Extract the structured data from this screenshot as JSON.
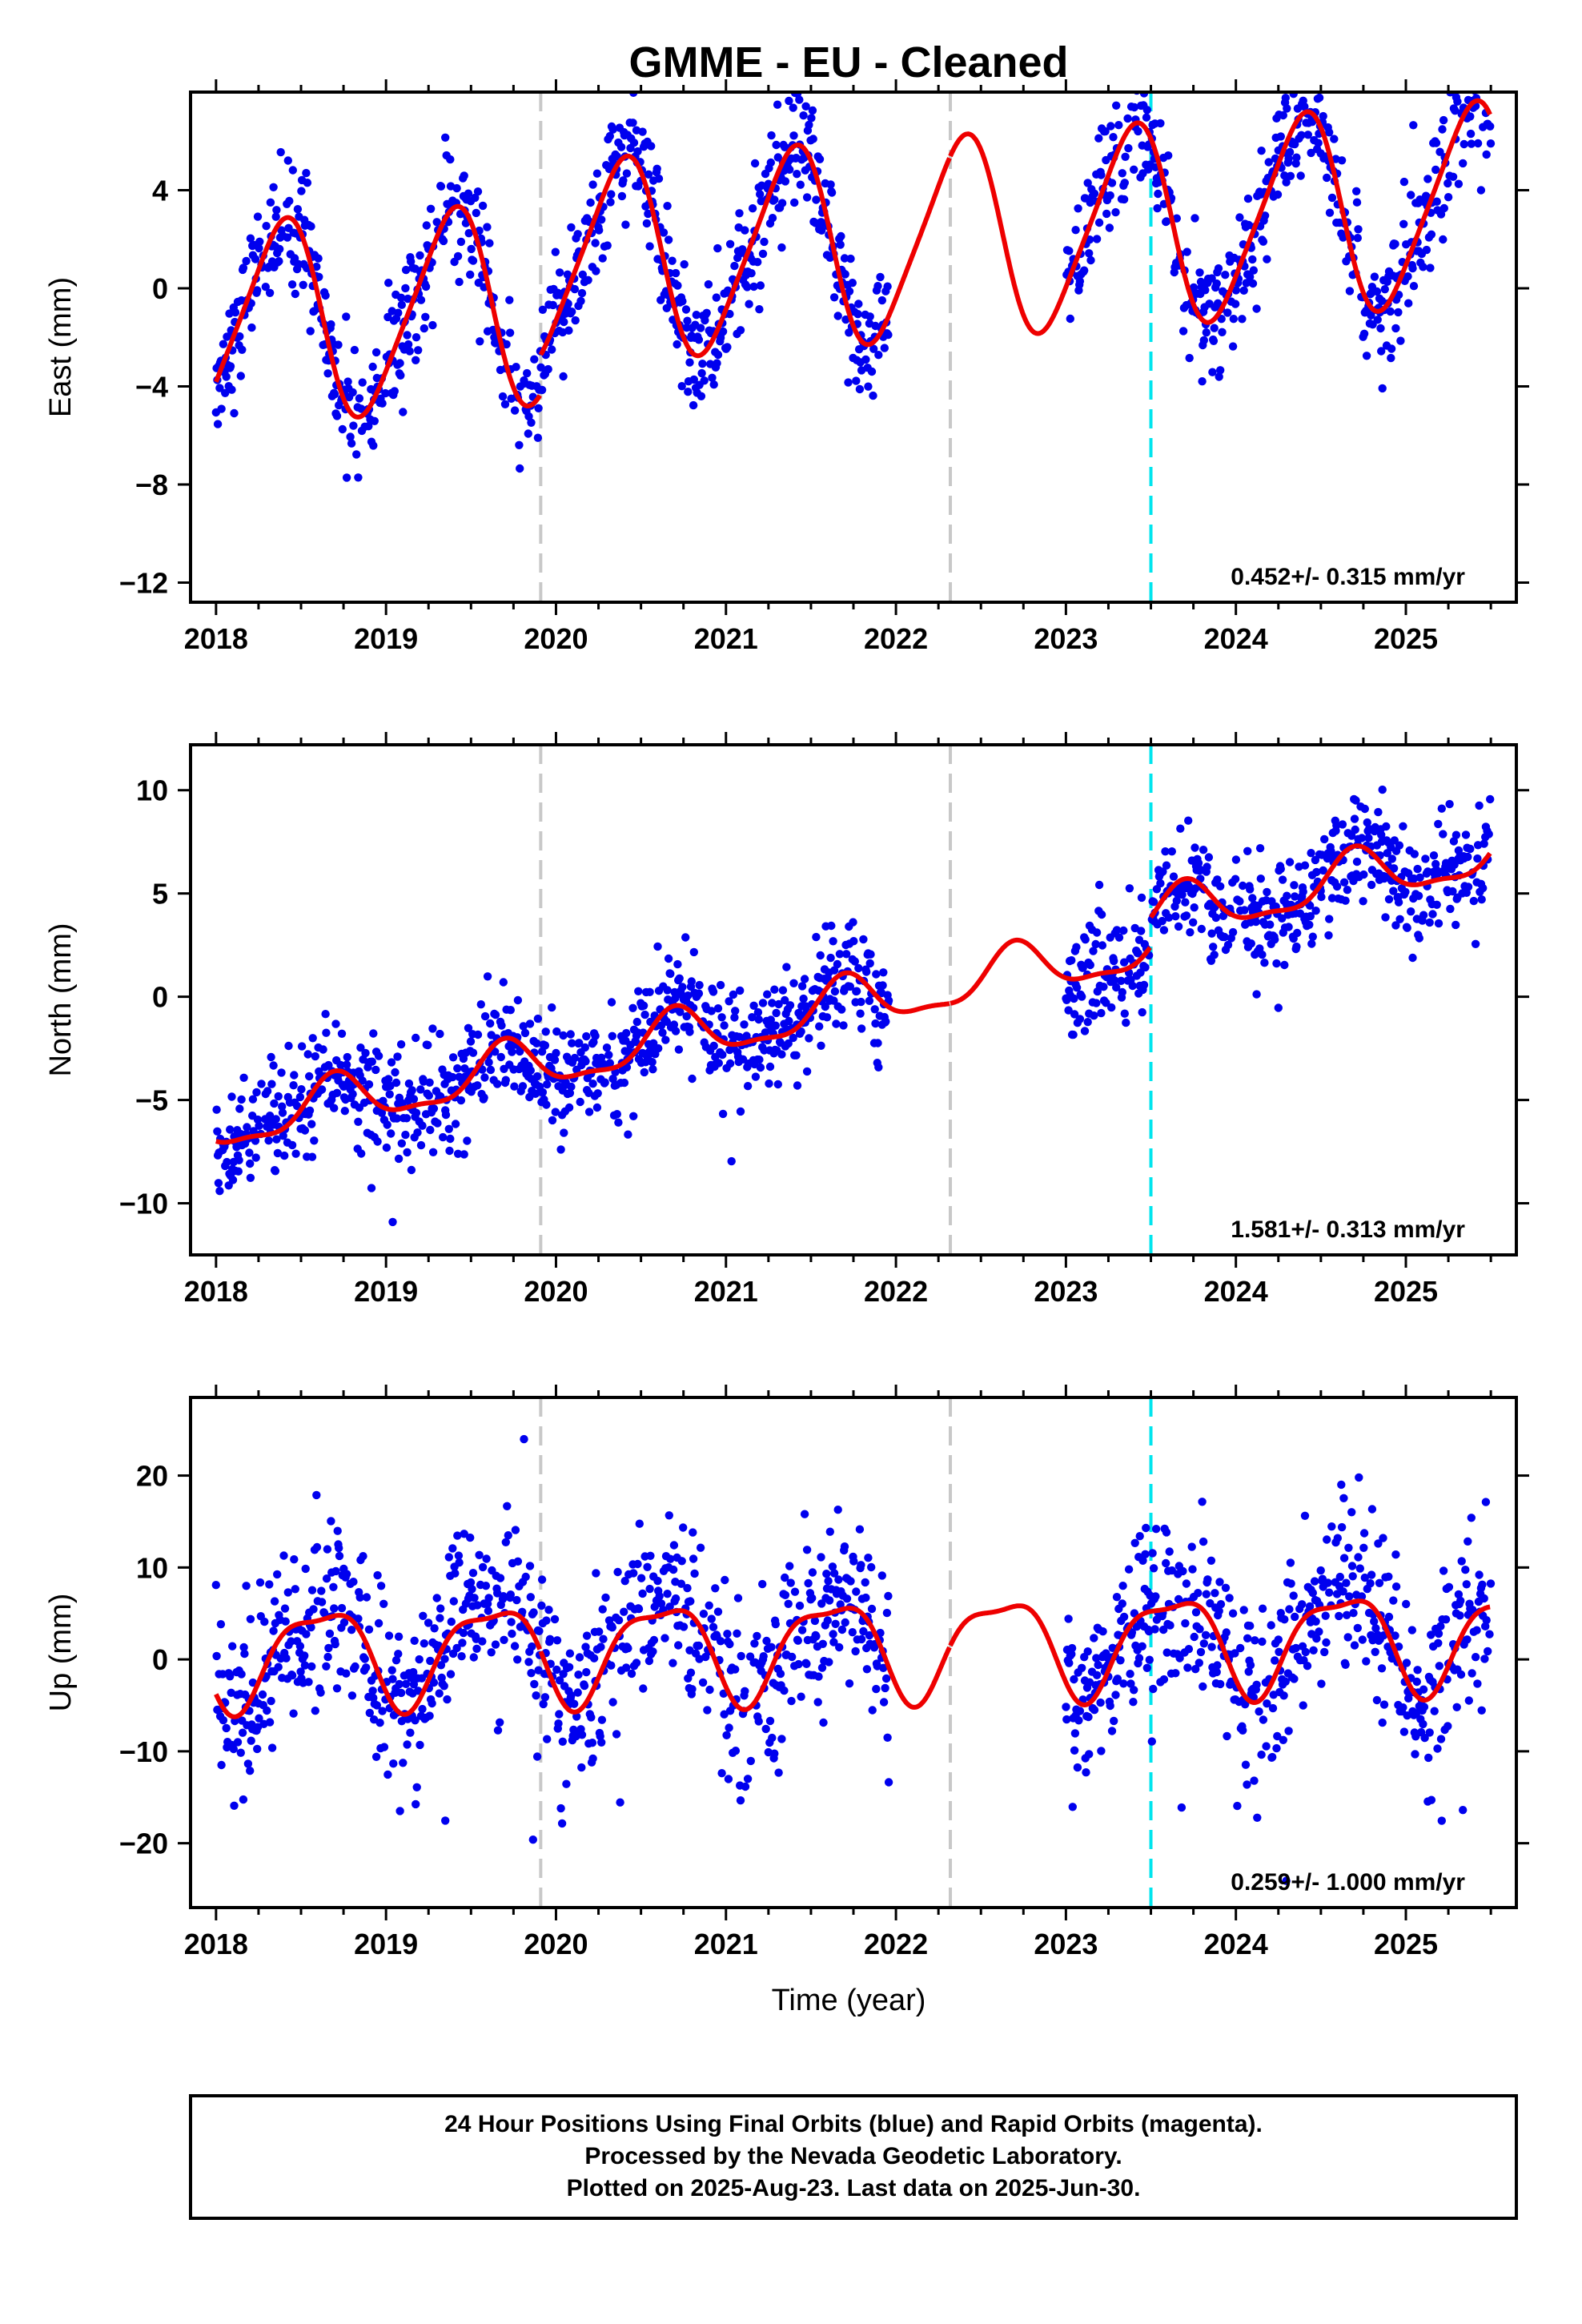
{
  "title": "GMME  - EU - Cleaned",
  "x_axis_label": "Time (year)",
  "footer": {
    "line1": "24 Hour Positions Using Final Orbits (blue) and Rapid Orbits (magenta).",
    "line2": "Processed by the Nevada Geodetic Laboratory.",
    "line3": "Plotted on 2025-Aug-23. Last data on 2025-Jun-30."
  },
  "colors": {
    "final_orbits": "#0000ee",
    "model_fit": "#ee0000",
    "equipment_change": "#c8c8c8",
    "event_marker": "#00e5ee"
  },
  "chart_data": [
    {
      "type": "scatter",
      "component": "east",
      "ylabel": "East (mm)",
      "xlim": [
        2017.85,
        2025.65
      ],
      "ylim": [
        -12.8,
        8.0
      ],
      "xticks": [
        2018,
        2019,
        2020,
        2021,
        2022,
        2023,
        2024,
        2025
      ],
      "yticks": [
        -12,
        -8,
        -4,
        0,
        4
      ],
      "ytick_labels": [
        "−12",
        "−8",
        "−4",
        "0",
        "4"
      ],
      "rate_label": "0.452+/- 0.315 mm/yr",
      "vlines_gray": [
        2019.91,
        2022.32
      ],
      "vlines_cyan": [
        2023.5
      ],
      "model": {
        "offset": -1.5,
        "rate": 0.452,
        "annual_amp": 4.0,
        "annual_phase": 2018.38,
        "semi_amp": 0.6,
        "semi_phase": 2018.5,
        "step_at": 2019.91,
        "step": 1.6
      },
      "scatter_sd": 1.2,
      "gaps": [
        [
          2021.96,
          2023.0
        ]
      ],
      "series": [
        {
          "name": "Final Orbits",
          "color": "#0000ee"
        },
        {
          "name": "Model Fit",
          "color": "#ee0000"
        }
      ]
    },
    {
      "type": "scatter",
      "component": "north",
      "ylabel": "North (mm)",
      "xlim": [
        2017.85,
        2025.65
      ],
      "ylim": [
        -12.5,
        12.2
      ],
      "xticks": [
        2018,
        2019,
        2020,
        2021,
        2022,
        2023,
        2024,
        2025
      ],
      "yticks": [
        -10,
        -5,
        0,
        5,
        10
      ],
      "ytick_labels": [
        "−10",
        "−5",
        "0",
        "5",
        "10"
      ],
      "rate_label": "1.581+/- 0.313 mm/yr",
      "vlines_gray": [
        2019.91,
        2022.32
      ],
      "vlines_cyan": [
        2023.5
      ],
      "model": {
        "offset": -6.3,
        "rate": 1.581,
        "annual_amp": 1.2,
        "annual_phase": 2018.7,
        "semi_amp": 0.4,
        "semi_phase": 2018.2,
        "step_at": 2023.5,
        "step": 1.4
      },
      "scatter_sd": 1.3,
      "gaps": [
        [
          2021.96,
          2023.0
        ]
      ],
      "series": [
        {
          "name": "Final Orbits",
          "color": "#0000ee"
        },
        {
          "name": "Model Fit",
          "color": "#ee0000"
        }
      ]
    },
    {
      "type": "scatter",
      "component": "up",
      "ylabel": "Up (mm)",
      "xlim": [
        2017.85,
        2025.65
      ],
      "ylim": [
        -27.0,
        28.5
      ],
      "xticks": [
        2018,
        2019,
        2020,
        2021,
        2022,
        2023,
        2024,
        2025
      ],
      "yticks": [
        -20,
        -10,
        0,
        10,
        20
      ],
      "ytick_labels": [
        "−20",
        "−10",
        "0",
        "10",
        "20"
      ],
      "rate_label": "0.259+/- 1.000 mm/yr",
      "vlines_gray": [
        2019.91,
        2022.32
      ],
      "vlines_cyan": [
        2023.5
      ],
      "model": {
        "offset": 0.5,
        "rate": 0.259,
        "annual_amp": 5.2,
        "annual_phase": 2018.62,
        "semi_amp": 1.6,
        "semi_phase": 2018.35,
        "step_at": 2019.91,
        "step": 0.0
      },
      "scatter_sd": 4.6,
      "gaps": [
        [
          2021.96,
          2023.0
        ]
      ],
      "series": [
        {
          "name": "Final Orbits",
          "color": "#0000ee"
        },
        {
          "name": "Model Fit",
          "color": "#ee0000"
        }
      ]
    }
  ]
}
